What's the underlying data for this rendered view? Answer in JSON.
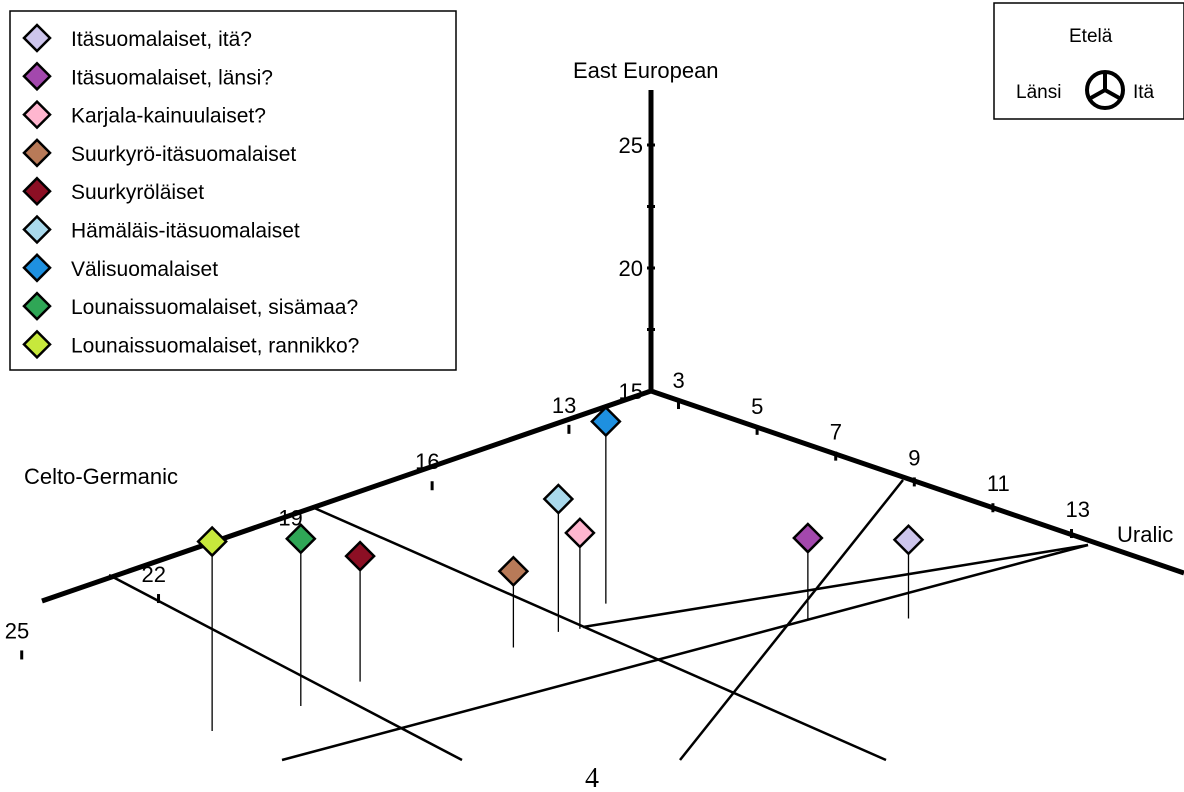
{
  "chart_data": {
    "type": "scatter",
    "subtype": "3d-ternary-projection",
    "axes": {
      "x": {
        "label": "Uralic",
        "ticks": [
          3,
          5,
          7,
          9,
          11,
          13
        ]
      },
      "y": {
        "label": "Celto-Germanic",
        "ticks": [
          13,
          16,
          19,
          22,
          25
        ]
      },
      "z": {
        "label": "East European",
        "ticks": [
          15,
          20,
          25
        ]
      }
    },
    "legend_position": "top-left",
    "series": [
      {
        "name": "Itäsuomalaiset, itä?",
        "color": "#cdc5ec",
        "x": 9.2,
        "y": 11.5,
        "z": 12.8
      },
      {
        "name": "Itäsuomalaiset, länsi?",
        "color": "#a348ad",
        "x": 7.8,
        "y": 12.5,
        "z": 12.9
      },
      {
        "name": "Karjala-kainuulaiset?",
        "color": "#ffb6cf",
        "x": 4.9,
        "y": 15.0,
        "z": 13.5
      },
      {
        "name": "Suurkyrö-itäsuomalaiset",
        "color": "#b87a58",
        "x": 4.6,
        "y": 16.2,
        "z": 12.7
      },
      {
        "name": "Suurkyröläiset",
        "color": "#8c0f24",
        "x": 3.6,
        "y": 18.7,
        "z": 14.7
      },
      {
        "name": "Hämäläis-itäsuomalaiset",
        "color": "#a9d9ec",
        "x": 4.7,
        "y": 15.3,
        "z": 15.0
      },
      {
        "name": "Välisuomalaiset",
        "color": "#1e90e0",
        "x": 4.4,
        "y": 14.0,
        "z": 17.0
      },
      {
        "name": "Lounaissuomalaiset, sisämaa?",
        "color": "#2fa656",
        "x": 3.6,
        "y": 20.0,
        "z": 16.4
      },
      {
        "name": "Lounaissuomalaiset, rannikko?",
        "color": "#c7e83c",
        "x": 3.2,
        "y": 21.6,
        "z": 17.3
      }
    ]
  },
  "compass": {
    "top": "Etelä",
    "left": "Länsi",
    "right": "Itä"
  },
  "page_number": "4"
}
